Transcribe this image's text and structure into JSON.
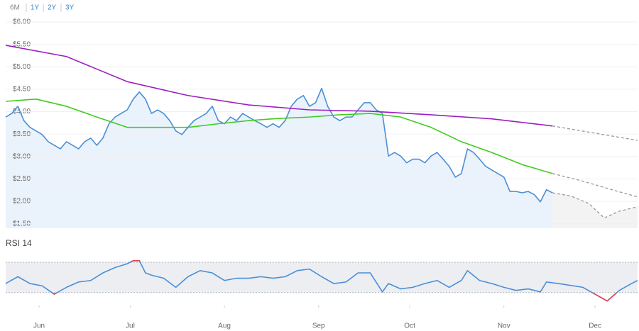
{
  "controls": {
    "ranges": [
      "6M",
      "1Y",
      "2Y",
      "3Y"
    ]
  },
  "chart_data": [
    {
      "type": "line",
      "xlim": [
        0,
        208
      ],
      "ylim": [
        1.4,
        6.1
      ],
      "yticks": [
        {
          "value": 1.5,
          "label": "$1.50"
        },
        {
          "value": 2,
          "label": "$2.00"
        },
        {
          "value": 2.5,
          "label": "$2.50"
        },
        {
          "value": 3,
          "label": "$3.00"
        },
        {
          "value": 3.5,
          "label": "$3.50"
        },
        {
          "value": 4,
          "label": "$4.00"
        },
        {
          "value": 4.5,
          "label": "$4.50"
        },
        {
          "value": 5,
          "label": "$5.00"
        },
        {
          "value": 5.5,
          "label": "$5.50"
        },
        {
          "value": 6,
          "label": "$6.00"
        }
      ],
      "grid": true,
      "series": [
        {
          "color": "#4a8fd6",
          "fill": "#eaf2fc",
          "x": [
            0,
            2,
            4,
            6,
            8,
            10,
            12,
            14,
            16,
            18,
            20,
            22,
            24,
            26,
            28,
            30,
            32,
            34,
            36,
            38,
            40,
            42,
            44,
            46,
            48,
            50,
            52,
            54,
            56,
            58,
            60,
            62,
            64,
            66,
            68,
            70,
            72,
            74,
            76,
            78,
            80,
            82,
            84,
            86,
            88,
            90,
            92,
            94,
            96,
            98,
            100,
            102,
            104,
            106,
            108,
            110,
            112,
            114,
            116,
            118,
            120,
            122,
            124,
            126,
            128,
            130,
            132,
            134,
            136,
            138,
            140,
            142,
            144,
            146,
            148,
            150,
            152,
            154,
            156,
            158,
            160,
            162,
            164,
            166,
            168,
            170,
            172,
            174,
            176,
            178,
            180
          ],
          "values": [
            3.88,
            3.96,
            4.12,
            3.8,
            3.65,
            3.57,
            3.49,
            3.33,
            3.25,
            3.17,
            3.33,
            3.25,
            3.17,
            3.33,
            3.41,
            3.25,
            3.41,
            3.73,
            3.88,
            3.96,
            4.04,
            4.28,
            4.44,
            4.28,
            3.96,
            4.04,
            3.96,
            3.8,
            3.57,
            3.49,
            3.65,
            3.8,
            3.88,
            3.96,
            4.12,
            3.8,
            3.73,
            3.88,
            3.8,
            3.96,
            3.88,
            3.8,
            3.73,
            3.65,
            3.73,
            3.65,
            3.8,
            4.12,
            4.28,
            4.36,
            4.12,
            4.2,
            4.52,
            4.12,
            3.88,
            3.8,
            3.88,
            3.88,
            4.04,
            4.2,
            4.2,
            4.04,
            3.96,
            3.01,
            3.09,
            3.01,
            2.86,
            2.94,
            2.94,
            2.86,
            3.01,
            3.09,
            2.94,
            2.78,
            2.54,
            2.62,
            3.17,
            3.09,
            2.94,
            2.78,
            2.7,
            2.62,
            2.54,
            2.22,
            2.22,
            2.19,
            2.22,
            2.15,
            1.99,
            2.26,
            2.19
          ]
        },
        {
          "color": "#9b1fc0",
          "x": [
            0,
            20,
            40,
            60,
            80,
            100,
            120,
            140,
            160,
            180
          ],
          "values": [
            5.48,
            5.23,
            4.67,
            4.36,
            4.15,
            4.04,
            4.01,
            3.93,
            3.84,
            3.68
          ]
        },
        {
          "color": "#3fcc1f",
          "x": [
            0,
            10,
            20,
            30,
            40,
            50,
            60,
            70,
            80,
            90,
            100,
            110,
            120,
            130,
            140,
            150,
            160,
            170,
            180
          ],
          "values": [
            4.23,
            4.28,
            4.12,
            3.88,
            3.65,
            3.65,
            3.65,
            3.73,
            3.8,
            3.85,
            3.88,
            3.93,
            3.96,
            3.88,
            3.65,
            3.33,
            3.09,
            2.82,
            2.62
          ]
        },
        {
          "color": "#999999",
          "dashed": true,
          "x": [
            180,
            208
          ],
          "values": [
            3.68,
            3.36
          ]
        },
        {
          "color": "#999999",
          "dashed": true,
          "x": [
            180,
            190,
            200,
            208
          ],
          "values": [
            2.62,
            2.45,
            2.25,
            2.1
          ]
        },
        {
          "color": "#999999",
          "dashed": true,
          "fill": "#f3f3f3",
          "x": [
            180,
            186,
            192,
            197,
            202,
            208
          ],
          "values": [
            2.19,
            2.12,
            1.95,
            1.63,
            1.78,
            1.88
          ]
        }
      ]
    },
    {
      "type": "line",
      "title": "RSI 14",
      "xlim": [
        0,
        208
      ],
      "ylim": [
        15,
        78
      ],
      "bands": [
        30,
        70
      ],
      "band_color": "#eceef2",
      "extreme_color": "#e0404c",
      "xticks": [
        {
          "value": 11,
          "label": "Jun"
        },
        {
          "value": 41,
          "label": "Jul"
        },
        {
          "value": 72,
          "label": "Aug"
        },
        {
          "value": 103,
          "label": "Sep"
        },
        {
          "value": 133,
          "label": "Oct"
        },
        {
          "value": 164,
          "label": "Nov"
        },
        {
          "value": 194,
          "label": "Dec"
        }
      ],
      "series": [
        {
          "color": "#4a8fd6",
          "x": [
            0,
            4,
            8,
            12,
            16,
            20,
            24,
            28,
            32,
            36,
            40,
            42,
            44,
            46,
            48,
            52,
            56,
            60,
            64,
            68,
            72,
            76,
            80,
            84,
            88,
            92,
            96,
            100,
            104,
            108,
            112,
            116,
            120,
            124,
            126,
            130,
            134,
            138,
            142,
            146,
            150,
            152,
            156,
            160,
            164,
            168,
            172,
            176,
            178,
            182,
            190,
            194,
            198,
            202,
            206,
            208
          ],
          "values": [
            42,
            51,
            42,
            39,
            28,
            37,
            44,
            46,
            56,
            63,
            68,
            72,
            72,
            56,
            53,
            49,
            37,
            51,
            59,
            56,
            46,
            49,
            49,
            51,
            49,
            51,
            59,
            61,
            51,
            42,
            44,
            56,
            56,
            31,
            42,
            35,
            37,
            42,
            46,
            37,
            46,
            59,
            46,
            42,
            37,
            33,
            35,
            31,
            44,
            42,
            37,
            28,
            19,
            33,
            42,
            46
          ]
        }
      ]
    }
  ]
}
